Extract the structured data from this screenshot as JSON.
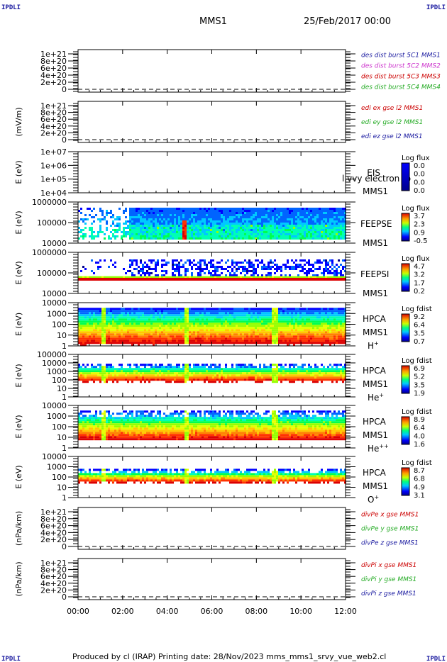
{
  "corner_labels": {
    "tl": "IPDLI",
    "tr": "IPDLI",
    "bl": "IPDLI",
    "br": "IPDLI"
  },
  "header": {
    "spacecraft": "MMS1",
    "date": "25/Feb/2017 00:00"
  },
  "footer": "Produced by cl (IRAP)   Printing date: 28/Nov/2023   mms_mms1_srvy_vue_web2.cl",
  "chart_data": {
    "type": "multi-panel time series",
    "x_range": [
      "00:00",
      "12:00"
    ],
    "x_ticks": [
      "00:00",
      "02:00",
      "04:00",
      "06:00",
      "08:00",
      "10:00",
      "12:00"
    ],
    "panels": [
      {
        "kind": "line",
        "ylabel": "",
        "ytick_labels": [
          "1e+21",
          "8e+20",
          "6e+20",
          "4e+20",
          "2e+20",
          "0"
        ],
        "series": [
          {
            "name": "des dist burst 5C1 MMS1",
            "color": "#1a1aa0"
          },
          {
            "name": "des dist burst 5C2 MMS2",
            "color": "#cc33cc"
          },
          {
            "name": "des dist burst 5C3 MMS3",
            "color": "#cc0000"
          },
          {
            "name": "des dist burst 5C4 MMS4",
            "color": "#22aa22"
          }
        ]
      },
      {
        "kind": "line",
        "ylabel": "(mV/m)",
        "ytick_labels": [
          "1e+21",
          "8e+20",
          "6e+20",
          "4e+20",
          "2e+20",
          "0"
        ],
        "series": [
          {
            "name": "edi ex gse l2 MMS1",
            "color": "#cc0000"
          },
          {
            "name": "edi ey gse l2 MMS1",
            "color": "#22aa22"
          },
          {
            "name": "edi ez gse l2 MMS1",
            "color": "#1a1aa0"
          }
        ]
      },
      {
        "kind": "spectrogram",
        "ylabel": "E (eV)",
        "ytick_labels": [
          "1e+07",
          "1e+06",
          "1e+05",
          "1e+04"
        ],
        "instrument": "EIS",
        "extra_label": "l.vvy electron to",
        "spacecraft": "MMS1",
        "species": "",
        "cbar_title": "Log flux",
        "cbar_values": [
          "0.0",
          "0.0",
          "0.0",
          "0.0"
        ]
      },
      {
        "kind": "spectrogram",
        "ylabel": "E (eV)",
        "ytick_labels": [
          "1000000",
          "100000",
          "10000"
        ],
        "instrument": "FEEPSE",
        "spacecraft": "MMS1",
        "species": "",
        "cbar_title": "Log flux",
        "cbar_values": [
          "3.7",
          "2.3",
          "0.9",
          "-0.5"
        ]
      },
      {
        "kind": "spectrogram",
        "ylabel": "E (eV)",
        "ytick_labels": [
          "1000000",
          "100000",
          "10000"
        ],
        "instrument": "FEEPSI",
        "spacecraft": "MMS1",
        "species": "",
        "cbar_title": "Log flux",
        "cbar_values": [
          "4.7",
          "3.2",
          "1.7",
          "0.2"
        ]
      },
      {
        "kind": "spectrogram",
        "ylabel": "E (eV)",
        "ytick_labels": [
          "10000",
          "1000",
          "100",
          "10",
          "1"
        ],
        "instrument": "HPCA",
        "spacecraft": "MMS1",
        "species": "H",
        "species_sup": "+",
        "cbar_title": "Log fdist",
        "cbar_values": [
          "9.2",
          "6.4",
          "3.5",
          "0.7"
        ]
      },
      {
        "kind": "spectrogram",
        "ylabel": "E (eV)",
        "ytick_labels": [
          "100000",
          "10000",
          "1000",
          "100",
          "10",
          "1"
        ],
        "instrument": "HPCA",
        "spacecraft": "MMS1",
        "species": "He",
        "species_sup": "+",
        "cbar_title": "Log fdist",
        "cbar_values": [
          "6.9",
          "5.2",
          "3.5",
          "1.9"
        ]
      },
      {
        "kind": "spectrogram",
        "ylabel": "E (eV)",
        "ytick_labels": [
          "10000",
          "1000",
          "100",
          "10",
          "1"
        ],
        "instrument": "HPCA",
        "spacecraft": "MMS1",
        "species": "He",
        "species_sup": "++",
        "cbar_title": "Log fdist",
        "cbar_values": [
          "8.9",
          "6.4",
          "4.0",
          "1.6"
        ]
      },
      {
        "kind": "spectrogram",
        "ylabel": "E (eV)",
        "ytick_labels": [
          "10000",
          "1000",
          "100",
          "10",
          "1"
        ],
        "instrument": "HPCA",
        "spacecraft": "MMS1",
        "species": "O",
        "species_sup": "+",
        "cbar_title": "Log fdist",
        "cbar_values": [
          "8.7",
          "6.8",
          "4.9",
          "3.1"
        ]
      },
      {
        "kind": "line",
        "ylabel": "(nPa/km)",
        "ytick_labels": [
          "1e+21",
          "8e+20",
          "6e+20",
          "4e+20",
          "2e+20",
          "0"
        ],
        "series": [
          {
            "name": "divPe x gse MMS1",
            "color": "#cc0000"
          },
          {
            "name": "divPe y gse MMS1",
            "color": "#22aa22"
          },
          {
            "name": "divPe z gse MMS1",
            "color": "#1a1aa0"
          }
        ]
      },
      {
        "kind": "line",
        "ylabel": "(nPa/km)",
        "ytick_labels": [
          "1e+21",
          "8e+20",
          "6e+20",
          "4e+20",
          "2e+20",
          "0"
        ],
        "series": [
          {
            "name": "divPi x gse MMS1",
            "color": "#cc0000"
          },
          {
            "name": "divPi y gse MMS1",
            "color": "#22aa22"
          },
          {
            "name": "divPi z gse MMS1",
            "color": "#1a1aa0"
          }
        ]
      }
    ]
  }
}
